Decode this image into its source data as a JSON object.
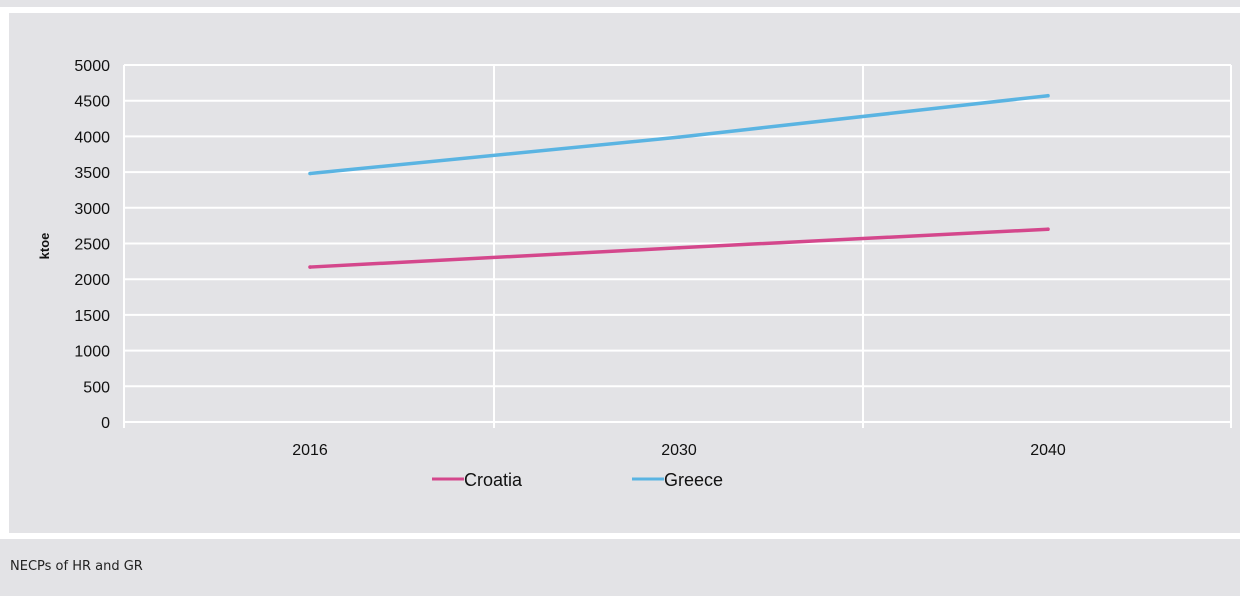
{
  "caption": "NECPs of HR and GR",
  "colors": {
    "panel_background": "#e3e3e6",
    "gridline": "#ffffff",
    "croatia": "#d4478c",
    "greece": "#5ab4e2"
  },
  "chart_data": {
    "type": "line",
    "title": "",
    "xlabel": "",
    "ylabel": "ktoe",
    "categories": [
      "2016",
      "2030",
      "2040"
    ],
    "ylim": [
      0,
      5000
    ],
    "yticks": [
      "5000",
      "4500",
      "4000",
      "3500",
      "3000",
      "2500",
      "2000",
      "1500",
      "1000",
      "500",
      "0"
    ],
    "grid": true,
    "legend_position": "bottom",
    "series": [
      {
        "name": "Croatia",
        "color": "#d4478c",
        "values": [
          2170,
          2440,
          2700
        ]
      },
      {
        "name": "Greece",
        "color": "#5ab4e2",
        "values": [
          3480,
          3990,
          4570
        ]
      }
    ]
  }
}
